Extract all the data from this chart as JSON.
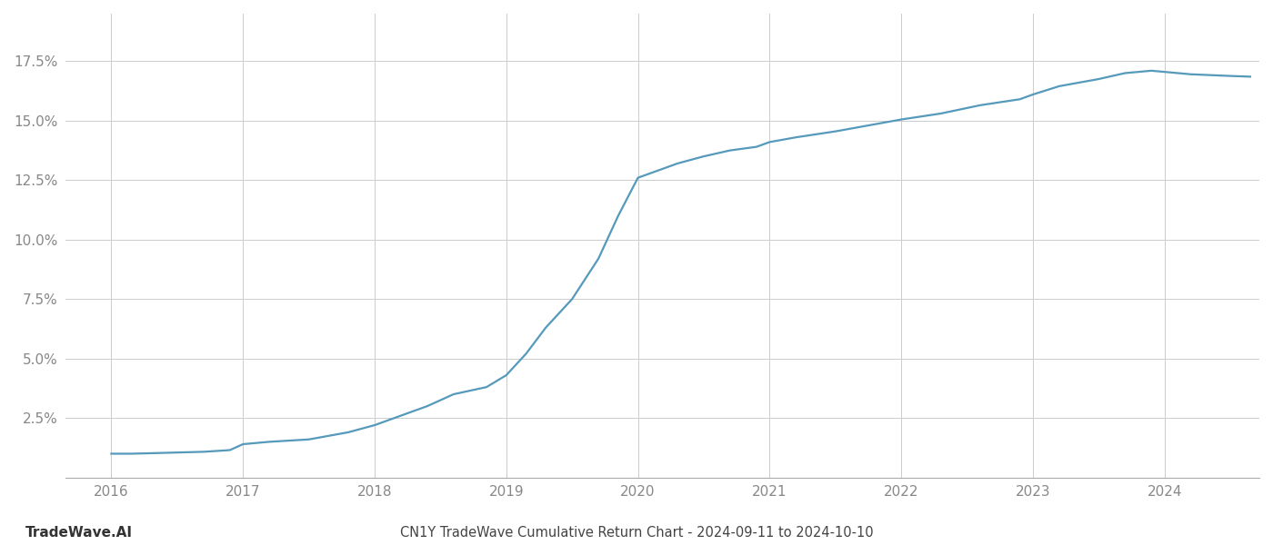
{
  "x_values": [
    2016.0,
    2016.15,
    2016.3,
    2016.5,
    2016.7,
    2016.9,
    2017.0,
    2017.2,
    2017.5,
    2017.8,
    2018.0,
    2018.2,
    2018.4,
    2018.6,
    2018.85,
    2019.0,
    2019.15,
    2019.3,
    2019.5,
    2019.7,
    2019.85,
    2020.0,
    2020.15,
    2020.3,
    2020.5,
    2020.7,
    2020.9,
    2021.0,
    2021.2,
    2021.5,
    2021.8,
    2022.0,
    2022.3,
    2022.6,
    2022.9,
    2023.0,
    2023.2,
    2023.5,
    2023.7,
    2023.9,
    2024.0,
    2024.2,
    2024.5,
    2024.65
  ],
  "y_values": [
    1.0,
    1.0,
    1.02,
    1.05,
    1.08,
    1.15,
    1.4,
    1.5,
    1.6,
    1.9,
    2.2,
    2.6,
    3.0,
    3.5,
    3.8,
    4.3,
    5.2,
    6.3,
    7.5,
    9.2,
    11.0,
    12.6,
    12.9,
    13.2,
    13.5,
    13.75,
    13.9,
    14.1,
    14.3,
    14.55,
    14.85,
    15.05,
    15.3,
    15.65,
    15.9,
    16.1,
    16.45,
    16.75,
    17.0,
    17.1,
    17.05,
    16.95,
    16.88,
    16.85
  ],
  "line_color": "#5599bb",
  "line_width": 1.6,
  "title": "CN1Y TradeWave Cumulative Return Chart - 2024-09-11 to 2024-10-10",
  "watermark": "TradeWave.AI",
  "x_tick_labels": [
    "2016",
    "2017",
    "2018",
    "2019",
    "2020",
    "2021",
    "2022",
    "2023",
    "2024"
  ],
  "x_tick_positions": [
    2016,
    2017,
    2018,
    2019,
    2020,
    2021,
    2022,
    2023,
    2024
  ],
  "y_ticks": [
    2.5,
    5.0,
    7.5,
    10.0,
    12.5,
    15.0,
    17.5
  ],
  "ylim": [
    0.0,
    19.5
  ],
  "xlim": [
    2015.65,
    2024.72
  ],
  "background_color": "#ffffff",
  "grid_color": "#cccccc",
  "title_fontsize": 10.5,
  "watermark_fontsize": 11,
  "tick_fontsize": 11,
  "tick_color": "#888888"
}
